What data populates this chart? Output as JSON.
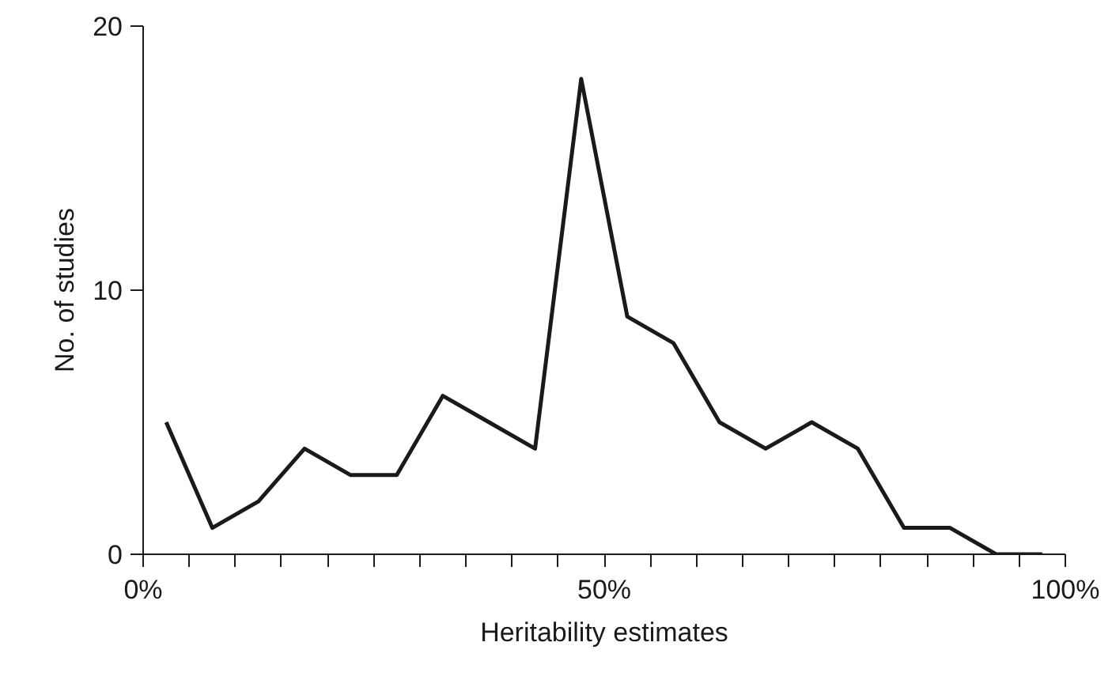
{
  "chart_data": {
    "type": "line",
    "xlabel": "Heritability estimates",
    "ylabel": "No. of studies",
    "x": [
      2.5,
      7.5,
      12.5,
      17.5,
      22.5,
      27.5,
      32.5,
      37.5,
      42.5,
      47.5,
      52.5,
      57.5,
      62.5,
      67.5,
      72.5,
      77.5,
      82.5,
      87.5,
      92.5,
      97.5
    ],
    "series": [
      {
        "color": "#1a1a1a",
        "values": [
          5,
          1,
          2,
          4,
          3,
          3,
          6,
          5,
          4,
          18,
          9,
          8,
          5,
          4,
          5,
          4,
          1,
          1,
          0,
          0
        ]
      }
    ],
    "xlim": [
      0,
      100
    ],
    "xticks": [
      {
        "value": 0,
        "label": "0%"
      },
      {
        "value": 5,
        "label": null
      },
      {
        "value": 10,
        "label": null
      },
      {
        "value": 15,
        "label": null
      },
      {
        "value": 20,
        "label": null
      },
      {
        "value": 25,
        "label": null
      },
      {
        "value": 30,
        "label": null
      },
      {
        "value": 35,
        "label": null
      },
      {
        "value": 40,
        "label": null
      },
      {
        "value": 45,
        "label": null
      },
      {
        "value": 50,
        "label": "50%"
      },
      {
        "value": 55,
        "label": null
      },
      {
        "value": 60,
        "label": null
      },
      {
        "value": 65,
        "label": null
      },
      {
        "value": 70,
        "label": null
      },
      {
        "value": 75,
        "label": null
      },
      {
        "value": 80,
        "label": null
      },
      {
        "value": 85,
        "label": null
      },
      {
        "value": 90,
        "label": null
      },
      {
        "value": 95,
        "label": null
      },
      {
        "value": 100,
        "label": "100%"
      }
    ],
    "ylim": [
      0,
      20
    ],
    "yticks": [
      0,
      10,
      20
    ],
    "grid": false,
    "marker": "none",
    "line_style": "solid"
  }
}
